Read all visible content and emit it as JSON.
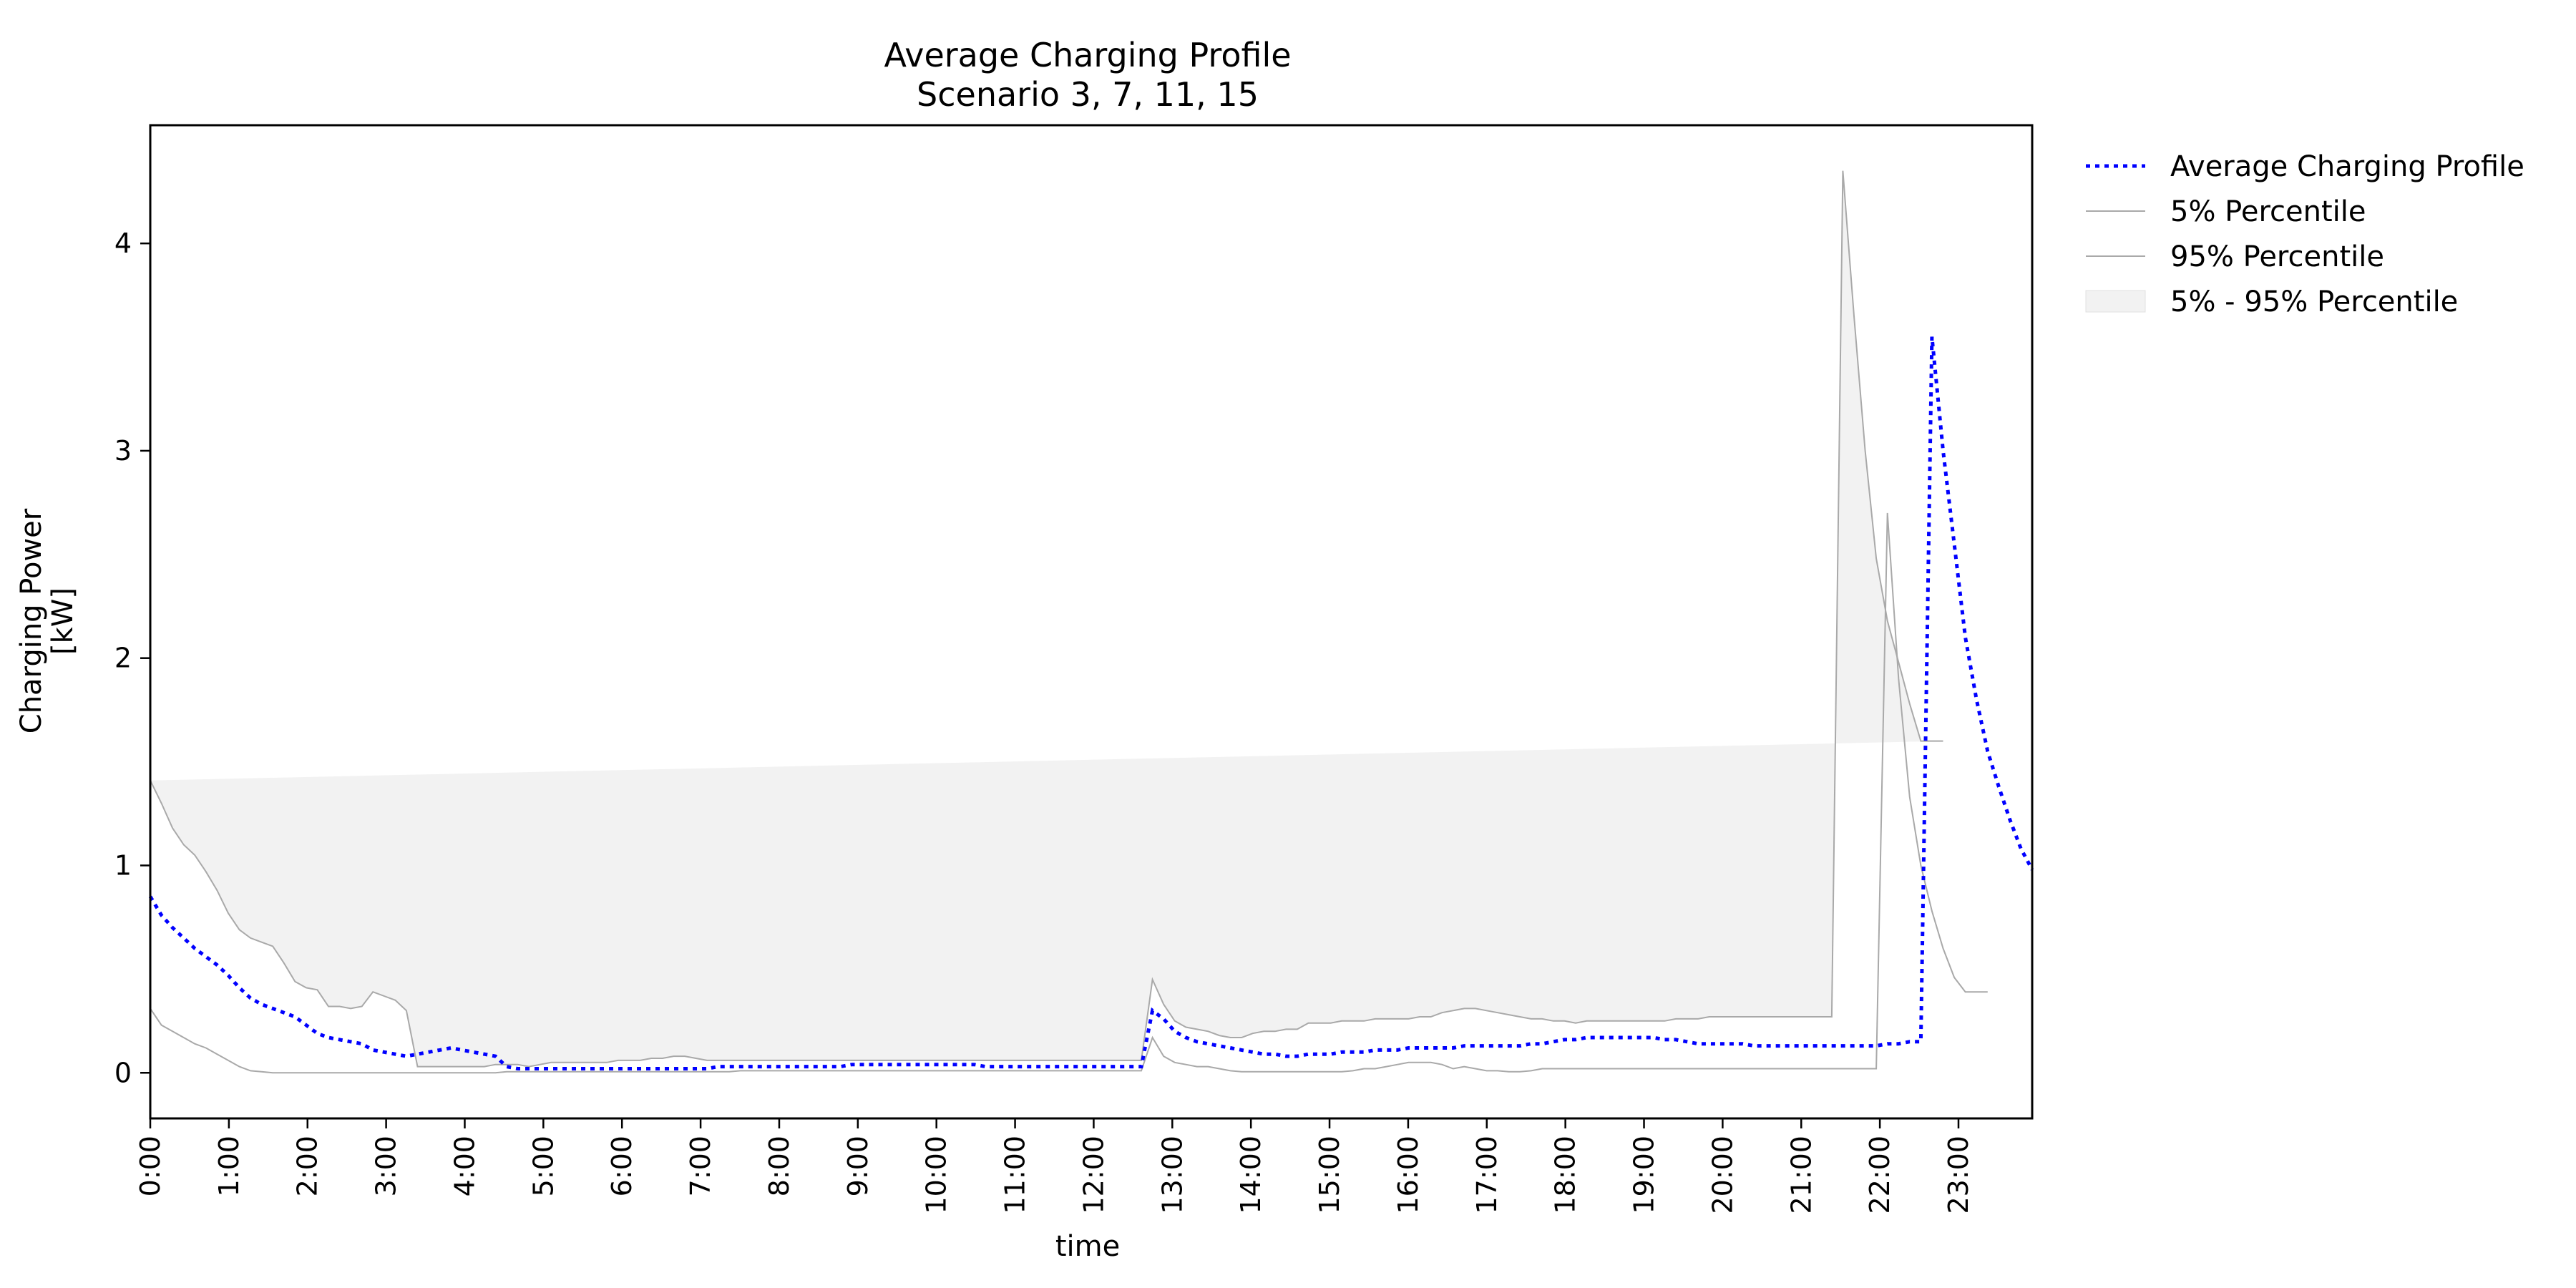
{
  "chart_data": {
    "type": "line",
    "title": [
      "Average Charging Profile",
      "Scenario 3, 7, 11, 15"
    ],
    "xlabel": "time",
    "ylabel": [
      "Charging Power",
      "[kW]"
    ],
    "xlim": [
      0,
      95.75
    ],
    "ylim": [
      -0.22,
      4.57
    ],
    "yticks": [
      0,
      1,
      2,
      3,
      4
    ],
    "xticks": [
      {
        "x": 0,
        "label": "0:00"
      },
      {
        "x": 4,
        "label": "1:00"
      },
      {
        "x": 8,
        "label": "2:00"
      },
      {
        "x": 12,
        "label": "3:00"
      },
      {
        "x": 16,
        "label": "4:00"
      },
      {
        "x": 20,
        "label": "5:00"
      },
      {
        "x": 24,
        "label": "6:00"
      },
      {
        "x": 28,
        "label": "7:00"
      },
      {
        "x": 32,
        "label": "8:00"
      },
      {
        "x": 36,
        "label": "9:00"
      },
      {
        "x": 40,
        "label": "10:00"
      },
      {
        "x": 44,
        "label": "11:00"
      },
      {
        "x": 48,
        "label": "12:00"
      },
      {
        "x": 52,
        "label": "13:00"
      },
      {
        "x": 56,
        "label": "14:00"
      },
      {
        "x": 60,
        "label": "15:00"
      },
      {
        "x": 64,
        "label": "16:00"
      },
      {
        "x": 68,
        "label": "17:00"
      },
      {
        "x": 72,
        "label": "18:00"
      },
      {
        "x": 76,
        "label": "19:00"
      },
      {
        "x": 80,
        "label": "20:00"
      },
      {
        "x": 84,
        "label": "21:00"
      },
      {
        "x": 88,
        "label": "22:00"
      },
      {
        "x": 92,
        "label": "23:00"
      }
    ],
    "legend_position": "outside-upper-right",
    "grid": false,
    "colors": {
      "average": "#0000ff",
      "percentile_line": "#a9a9a9",
      "band_fill": "#f2f2f2"
    },
    "series": [
      {
        "name": "Average Charging Profile",
        "values": [
          0.85,
          0.76,
          0.7,
          0.65,
          0.6,
          0.56,
          0.52,
          0.47,
          0.41,
          0.36,
          0.33,
          0.31,
          0.29,
          0.27,
          0.23,
          0.19,
          0.17,
          0.16,
          0.15,
          0.14,
          0.11,
          0.1,
          0.09,
          0.08,
          0.09,
          0.1,
          0.11,
          0.12,
          0.11,
          0.1,
          0.09,
          0.08,
          0.03,
          0.02,
          0.02,
          0.02,
          0.02,
          0.02,
          0.02,
          0.02,
          0.02,
          0.02,
          0.02,
          0.02,
          0.02,
          0.02,
          0.02,
          0.02,
          0.02,
          0.02,
          0.02,
          0.03,
          0.03,
          0.03,
          0.03,
          0.03,
          0.03,
          0.03,
          0.03,
          0.03,
          0.03,
          0.03,
          0.03,
          0.04,
          0.04,
          0.04,
          0.04,
          0.04,
          0.04,
          0.04,
          0.04,
          0.04,
          0.04,
          0.04,
          0.04,
          0.03,
          0.03,
          0.03,
          0.03,
          0.03,
          0.03,
          0.03,
          0.03,
          0.03,
          0.03,
          0.03,
          0.03,
          0.03,
          0.03,
          0.03,
          0.3,
          0.26,
          0.2,
          0.17,
          0.15,
          0.14,
          0.13,
          0.12,
          0.11,
          0.1,
          0.09,
          0.09,
          0.08,
          0.08,
          0.09,
          0.09,
          0.09,
          0.1,
          0.1,
          0.1,
          0.11,
          0.11,
          0.11,
          0.12,
          0.12,
          0.12,
          0.12,
          0.12,
          0.13,
          0.13,
          0.13,
          0.13,
          0.13,
          0.13,
          0.14,
          0.14,
          0.15,
          0.16,
          0.16,
          0.17,
          0.17,
          0.17,
          0.17,
          0.17,
          0.17,
          0.17,
          0.16,
          0.16,
          0.15,
          0.14,
          0.14,
          0.14,
          0.14,
          0.14,
          0.13,
          0.13,
          0.13,
          0.13,
          0.13,
          0.13,
          0.13,
          0.13,
          0.13,
          0.13,
          0.13,
          0.13,
          0.14,
          0.14,
          0.15,
          0.15,
          3.55,
          3.0,
          2.55,
          2.1,
          1.8,
          1.55,
          1.38,
          1.22,
          1.08,
          0.98
        ]
      },
      {
        "name": "5% Percentile",
        "values": [
          0.31,
          0.23,
          0.2,
          0.17,
          0.14,
          0.12,
          0.09,
          0.06,
          0.03,
          0.01,
          0.005,
          0,
          0,
          0,
          0,
          0,
          0,
          0,
          0,
          0,
          0,
          0,
          0,
          0,
          0,
          0,
          0,
          0,
          0,
          0,
          0,
          0,
          0.005,
          0.005,
          0.005,
          0.005,
          0.005,
          0.005,
          0.005,
          0.005,
          0.005,
          0.005,
          0.005,
          0.005,
          0.005,
          0.005,
          0.005,
          0.005,
          0.005,
          0.005,
          0.005,
          0.005,
          0.005,
          0.01,
          0.01,
          0.01,
          0.01,
          0.01,
          0.01,
          0.01,
          0.01,
          0.01,
          0.01,
          0.01,
          0.01,
          0.01,
          0.01,
          0.01,
          0.01,
          0.01,
          0.01,
          0.01,
          0.01,
          0.01,
          0.01,
          0.01,
          0.01,
          0.01,
          0.01,
          0.01,
          0.01,
          0.01,
          0.01,
          0.01,
          0.01,
          0.01,
          0.01,
          0.01,
          0.01,
          0.01,
          0.17,
          0.08,
          0.05,
          0.04,
          0.03,
          0.03,
          0.02,
          0.01,
          0.005,
          0.005,
          0.005,
          0.005,
          0.005,
          0.005,
          0.005,
          0.005,
          0.005,
          0.005,
          0.01,
          0.02,
          0.02,
          0.03,
          0.04,
          0.05,
          0.05,
          0.05,
          0.04,
          0.02,
          0.03,
          0.02,
          0.01,
          0.01,
          0.005,
          0.005,
          0.01,
          0.02,
          0.02,
          0.02,
          0.02,
          0.02,
          0.02,
          0.02,
          0.02,
          0.02,
          0.02,
          0.02,
          0.02,
          0.02,
          0.02,
          0.02,
          0.02,
          0.02,
          0.02,
          0.02,
          0.02,
          0.02,
          0.02,
          0.02,
          0.02,
          0.02,
          0.02,
          0.02,
          0.02,
          0.02,
          0.02,
          0.02,
          2.7,
          1.9,
          1.33,
          1.0,
          0.78,
          0.6,
          0.46,
          0.39,
          0.39,
          0.39
        ]
      },
      {
        "name": "95% Percentile",
        "values": [
          1.41,
          1.3,
          1.18,
          1.1,
          1.05,
          0.97,
          0.88,
          0.77,
          0.69,
          0.65,
          0.63,
          0.61,
          0.53,
          0.44,
          0.41,
          0.4,
          0.32,
          0.32,
          0.31,
          0.32,
          0.39,
          0.37,
          0.35,
          0.3,
          0.03,
          0.03,
          0.03,
          0.03,
          0.03,
          0.03,
          0.03,
          0.04,
          0.04,
          0.04,
          0.03,
          0.04,
          0.05,
          0.05,
          0.05,
          0.05,
          0.05,
          0.05,
          0.06,
          0.06,
          0.06,
          0.07,
          0.07,
          0.08,
          0.08,
          0.07,
          0.06,
          0.06,
          0.06,
          0.06,
          0.06,
          0.06,
          0.06,
          0.06,
          0.06,
          0.06,
          0.06,
          0.06,
          0.06,
          0.06,
          0.06,
          0.06,
          0.06,
          0.06,
          0.06,
          0.06,
          0.06,
          0.06,
          0.06,
          0.06,
          0.06,
          0.06,
          0.06,
          0.06,
          0.06,
          0.06,
          0.06,
          0.06,
          0.06,
          0.06,
          0.06,
          0.06,
          0.06,
          0.06,
          0.06,
          0.06,
          0.45,
          0.33,
          0.25,
          0.22,
          0.21,
          0.2,
          0.18,
          0.17,
          0.17,
          0.19,
          0.2,
          0.2,
          0.21,
          0.21,
          0.24,
          0.24,
          0.24,
          0.25,
          0.25,
          0.25,
          0.26,
          0.26,
          0.26,
          0.26,
          0.27,
          0.27,
          0.29,
          0.3,
          0.31,
          0.31,
          0.3,
          0.29,
          0.28,
          0.27,
          0.26,
          0.26,
          0.25,
          0.25,
          0.24,
          0.25,
          0.25,
          0.25,
          0.25,
          0.25,
          0.25,
          0.25,
          0.25,
          0.26,
          0.26,
          0.26,
          0.27,
          0.27,
          0.27,
          0.27,
          0.27,
          0.27,
          0.27,
          0.27,
          0.27,
          0.27,
          0.27,
          0.27,
          4.35,
          3.65,
          3.0,
          2.48,
          2.18,
          1.98,
          1.78,
          1.6,
          1.6,
          1.6
        ]
      }
    ],
    "band": {
      "name": "5% - 95% Percentile",
      "lower": "5% Percentile",
      "upper": "95% Percentile"
    },
    "legend": [
      {
        "label": "Average Charging Profile",
        "style": "dotted-line"
      },
      {
        "label": "5% Percentile",
        "style": "thin-line"
      },
      {
        "label": "95% Percentile",
        "style": "thin-line"
      },
      {
        "label": "5% - 95% Percentile",
        "style": "filled-box"
      }
    ]
  }
}
